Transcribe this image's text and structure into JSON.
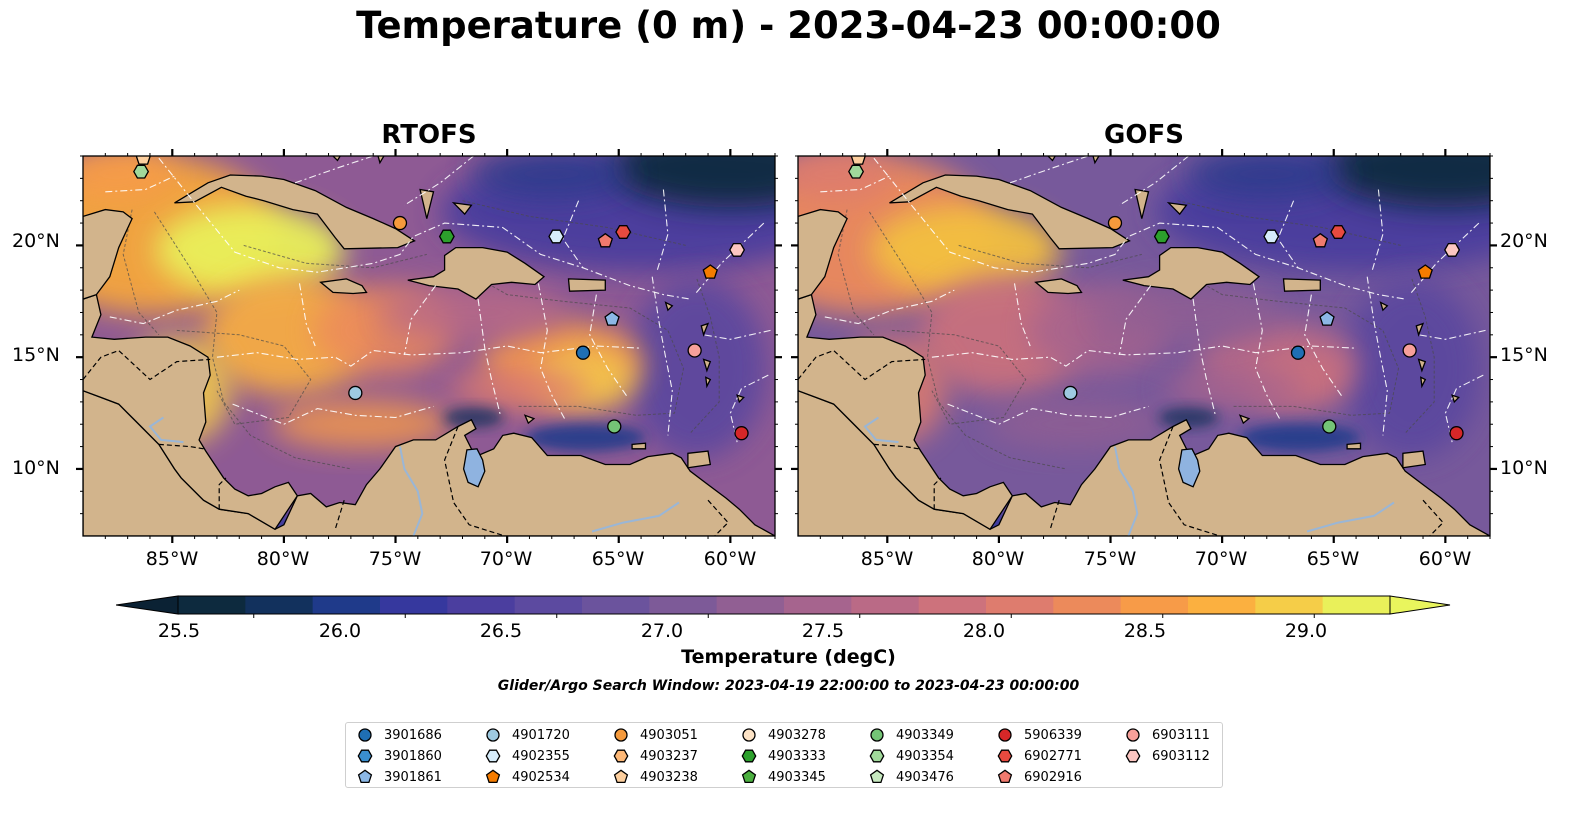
{
  "figure": {
    "title": "Temperature (0 m) - 2023-04-23 00:00:00",
    "search_window": "Glider/Argo Search Window: 2023-04-19 22:00:00 to 2023-04-23 00:00:00"
  },
  "panels": [
    {
      "title": "RTOFS",
      "model": "rtofs"
    },
    {
      "title": "GOFS",
      "model": "gofs"
    }
  ],
  "map": {
    "lon_range": [
      -89,
      -58
    ],
    "lat_range": [
      7,
      24
    ],
    "lat_ticks": [
      {
        "value": 20,
        "label": "20°N"
      },
      {
        "value": 15,
        "label": "15°N"
      },
      {
        "value": 10,
        "label": "10°N"
      }
    ],
    "lon_ticks": [
      {
        "value": -85,
        "label": "85°W"
      },
      {
        "value": -80,
        "label": "80°W"
      },
      {
        "value": -75,
        "label": "75°W"
      },
      {
        "value": -70,
        "label": "70°W"
      },
      {
        "value": -65,
        "label": "65°W"
      },
      {
        "value": -60,
        "label": "60°W"
      }
    ],
    "colors": {
      "land": "#d2b48c",
      "lake": "#8fb3e0",
      "river": "#9ab6d6",
      "contour": "#555555",
      "eez": "#ffffff"
    }
  },
  "colorbar": {
    "title": "Temperature (degC)",
    "min": 25.25,
    "max": 29.25,
    "step": 0.25,
    "colors": [
      "#0d2a3e",
      "#12315d",
      "#1f3a8a",
      "#36389e",
      "#4b3e9f",
      "#5c4aa0",
      "#6b539d",
      "#7d5a98",
      "#915f93",
      "#a6648e",
      "#ba6a86",
      "#cd727c",
      "#de7c6e",
      "#ec8a5b",
      "#f79b48",
      "#fbb040",
      "#f5cd48",
      "#e9f05a"
    ],
    "under_color": "#0b2234",
    "over_color": "#e9f55d",
    "ticks": [
      {
        "value": 25.5,
        "label": "25.5"
      },
      {
        "value": 26.0,
        "label": "26.0"
      },
      {
        "value": 26.5,
        "label": "26.5"
      },
      {
        "value": 27.0,
        "label": "27.0"
      },
      {
        "value": 27.5,
        "label": "27.5"
      },
      {
        "value": 28.0,
        "label": "28.0"
      },
      {
        "value": 28.5,
        "label": "28.5"
      },
      {
        "value": 29.0,
        "label": "29.0"
      }
    ]
  },
  "platforms": [
    {
      "id": "3901686",
      "marker": "circle",
      "color": "#1f6fb4"
    },
    {
      "id": "3901860",
      "marker": "hexagon",
      "color": "#3a8fd0"
    },
    {
      "id": "3901861",
      "marker": "pentagon",
      "color": "#8cb8e6"
    },
    {
      "id": "4901720",
      "marker": "circle",
      "color": "#9ecae1"
    },
    {
      "id": "4902355",
      "marker": "hexagon",
      "color": "#d6ecfa"
    },
    {
      "id": "4902534",
      "marker": "pentagon",
      "color": "#f57c00"
    },
    {
      "id": "4903051",
      "marker": "circle",
      "color": "#f59a3c"
    },
    {
      "id": "4903237",
      "marker": "hexagon",
      "color": "#fdb877"
    },
    {
      "id": "4903238",
      "marker": "pentagon",
      "color": "#fdcf9e"
    },
    {
      "id": "4903278",
      "marker": "circle",
      "color": "#fde3c6"
    },
    {
      "id": "4903333",
      "marker": "hexagon",
      "color": "#2ca02c"
    },
    {
      "id": "4903345",
      "marker": "pentagon",
      "color": "#4cb040"
    },
    {
      "id": "4903349",
      "marker": "circle",
      "color": "#74c476"
    },
    {
      "id": "4903354",
      "marker": "hexagon",
      "color": "#a1d99b"
    },
    {
      "id": "4903476",
      "marker": "pentagon",
      "color": "#c7e9c0"
    },
    {
      "id": "5906339",
      "marker": "circle",
      "color": "#d62728"
    },
    {
      "id": "6902771",
      "marker": "hexagon",
      "color": "#e84a3f"
    },
    {
      "id": "6902916",
      "marker": "pentagon",
      "color": "#f07a6e"
    },
    {
      "id": "6903111",
      "marker": "circle",
      "color": "#f7a09a"
    },
    {
      "id": "6903112",
      "marker": "hexagon",
      "color": "#fcc6c1"
    }
  ],
  "observations": [
    {
      "id": "3901686",
      "lon": -66.6,
      "lat": 15.2
    },
    {
      "id": "3901861",
      "lon": -65.3,
      "lat": 16.7
    },
    {
      "id": "4901720",
      "lon": -76.8,
      "lat": 13.4
    },
    {
      "id": "4902355",
      "lon": -67.8,
      "lat": 20.4
    },
    {
      "id": "4902534",
      "lon": -60.9,
      "lat": 18.8
    },
    {
      "id": "4903051",
      "lon": -74.8,
      "lat": 21.0
    },
    {
      "id": "4903238",
      "lon": -86.3,
      "lat": 23.9
    },
    {
      "id": "4903333",
      "lon": -72.7,
      "lat": 20.4
    },
    {
      "id": "4903349",
      "lon": -65.2,
      "lat": 11.9
    },
    {
      "id": "4903354",
      "lon": -86.4,
      "lat": 23.3
    },
    {
      "id": "5906339",
      "lon": -59.5,
      "lat": 11.6
    },
    {
      "id": "6902771",
      "lon": -64.8,
      "lat": 20.6
    },
    {
      "id": "6902916",
      "lon": -65.6,
      "lat": 20.2
    },
    {
      "id": "6903111",
      "lon": -61.6,
      "lat": 15.3
    },
    {
      "id": "6903112",
      "lon": -59.7,
      "lat": 19.8
    }
  ]
}
